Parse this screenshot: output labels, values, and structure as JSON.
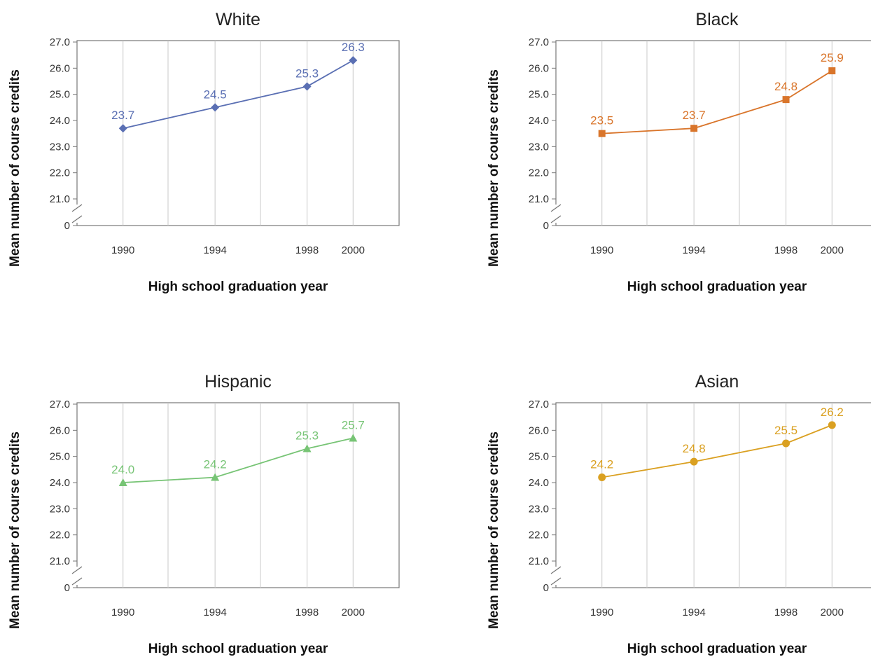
{
  "chart_data": [
    {
      "type": "line",
      "title": "White",
      "xlabel": "High school graduation year",
      "ylabel": "Mean number of course credits",
      "x": [
        1990,
        1994,
        1998,
        2000
      ],
      "x_tick_labels": [
        "1990",
        "1994",
        "1998",
        "2000"
      ],
      "y_tick_labels": [
        "27.0",
        "26.0",
        "25.0",
        "24.0",
        "23.0",
        "22.0",
        "21.0",
        "0"
      ],
      "ylim": [
        21.0,
        27.0
      ],
      "y_axis_break": true,
      "grid": "vertical",
      "marker": "diamond",
      "color": "#5a6fb3",
      "series": [
        {
          "values": [
            23.7,
            24.5,
            25.3,
            26.3
          ],
          "labels": [
            "23.7",
            "24.5",
            "25.3",
            "26.3"
          ]
        }
      ]
    },
    {
      "type": "line",
      "title": "Black",
      "xlabel": "High school graduation year",
      "ylabel": "Mean number of course credits",
      "x": [
        1990,
        1994,
        1998,
        2000
      ],
      "x_tick_labels": [
        "1990",
        "1994",
        "1998",
        "2000"
      ],
      "y_tick_labels": [
        "27.0",
        "26.0",
        "25.0",
        "24.0",
        "23.0",
        "22.0",
        "21.0",
        "0"
      ],
      "ylim": [
        21.0,
        27.0
      ],
      "y_axis_break": true,
      "grid": "vertical",
      "marker": "square",
      "color": "#d9752b",
      "series": [
        {
          "values": [
            23.5,
            23.7,
            24.8,
            25.9
          ],
          "labels": [
            "23.5",
            "23.7",
            "24.8",
            "25.9"
          ]
        }
      ]
    },
    {
      "type": "line",
      "title": "Hispanic",
      "xlabel": "High school graduation year",
      "ylabel": "Mean number of course credits",
      "x": [
        1990,
        1994,
        1998,
        2000
      ],
      "x_tick_labels": [
        "1990",
        "1994",
        "1998",
        "2000"
      ],
      "y_tick_labels": [
        "27.0",
        "26.0",
        "25.0",
        "24.0",
        "23.0",
        "22.0",
        "21.0",
        "0"
      ],
      "ylim": [
        21.0,
        27.0
      ],
      "y_axis_break": true,
      "grid": "vertical",
      "marker": "triangle",
      "color": "#77c475",
      "series": [
        {
          "values": [
            24.0,
            24.2,
            25.3,
            25.7
          ],
          "labels": [
            "24.0",
            "24.2",
            "25.3",
            "25.7"
          ]
        }
      ]
    },
    {
      "type": "line",
      "title": "Asian",
      "xlabel": "High school graduation year",
      "ylabel": "Mean number of course credits",
      "x": [
        1990,
        1994,
        1998,
        2000
      ],
      "x_tick_labels": [
        "1990",
        "1994",
        "1998",
        "2000"
      ],
      "y_tick_labels": [
        "27.0",
        "26.0",
        "25.0",
        "24.0",
        "23.0",
        "22.0",
        "21.0",
        "0"
      ],
      "ylim": [
        21.0,
        27.0
      ],
      "y_axis_break": true,
      "grid": "vertical",
      "marker": "circle",
      "color": "#daa021",
      "series": [
        {
          "values": [
            24.2,
            24.8,
            25.5,
            26.2
          ],
          "labels": [
            "24.2",
            "24.8",
            "25.5",
            "26.2"
          ]
        }
      ]
    }
  ]
}
